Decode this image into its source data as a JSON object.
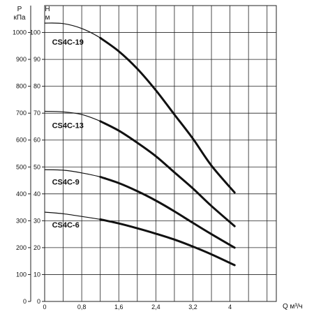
{
  "chart_data": {
    "type": "line",
    "title": "",
    "x_axis": {
      "label": "Q м³/ч",
      "range": [
        0,
        5
      ],
      "ticks": [
        "0",
        "0,8",
        "1,6",
        "2,4",
        "3,2",
        "4"
      ],
      "tick_values": [
        0,
        0.8,
        1.6,
        2.4,
        3.2,
        4.0
      ]
    },
    "y_axis_left": {
      "label_top": "P",
      "label_bottom": "кПа",
      "range": [
        0,
        1100
      ],
      "ticks": [
        "0",
        "100",
        "200",
        "300",
        "400",
        "500",
        "600",
        "700",
        "800",
        "900",
        "1000"
      ],
      "tick_values": [
        0,
        100,
        200,
        300,
        400,
        500,
        600,
        700,
        800,
        900,
        1000
      ]
    },
    "y_axis_right": {
      "label_top": "H",
      "label_bottom": "м",
      "range": [
        0,
        110
      ],
      "ticks": [
        "0",
        "10",
        "20",
        "30",
        "40",
        "50",
        "60",
        "70",
        "80",
        "90",
        "100"
      ],
      "tick_values": [
        0,
        10,
        20,
        30,
        40,
        50,
        60,
        70,
        80,
        90,
        100
      ]
    },
    "grid": true,
    "series": [
      {
        "name": "CS4C-19",
        "label_at": [
          0.25,
          965
        ],
        "points": [
          [
            0,
            1035
          ],
          [
            0.4,
            1033
          ],
          [
            0.8,
            1015
          ],
          [
            1.2,
            980
          ],
          [
            1.6,
            930
          ],
          [
            2.0,
            865
          ],
          [
            2.4,
            785
          ],
          [
            2.8,
            695
          ],
          [
            3.2,
            605
          ],
          [
            3.6,
            505
          ],
          [
            4.1,
            405
          ]
        ]
      },
      {
        "name": "CS4C-13",
        "label_at": [
          0.25,
          655
        ],
        "points": [
          [
            0,
            707
          ],
          [
            0.4,
            705
          ],
          [
            0.8,
            695
          ],
          [
            1.2,
            670
          ],
          [
            1.6,
            635
          ],
          [
            2.0,
            590
          ],
          [
            2.4,
            540
          ],
          [
            2.8,
            480
          ],
          [
            3.2,
            420
          ],
          [
            3.6,
            355
          ],
          [
            4.1,
            280
          ]
        ]
      },
      {
        "name": "CS4C-9",
        "label_at": [
          0.25,
          445
        ],
        "points": [
          [
            0,
            490
          ],
          [
            0.4,
            488
          ],
          [
            0.8,
            478
          ],
          [
            1.2,
            463
          ],
          [
            1.6,
            440
          ],
          [
            2.0,
            410
          ],
          [
            2.4,
            375
          ],
          [
            2.8,
            335
          ],
          [
            3.2,
            292
          ],
          [
            3.6,
            250
          ],
          [
            4.1,
            200
          ]
        ]
      },
      {
        "name": "CS4C-6",
        "label_at": [
          0.25,
          285
        ],
        "points": [
          [
            0,
            332
          ],
          [
            0.4,
            326
          ],
          [
            0.8,
            316
          ],
          [
            1.2,
            305
          ],
          [
            1.6,
            290
          ],
          [
            2.0,
            272
          ],
          [
            2.4,
            252
          ],
          [
            2.8,
            230
          ],
          [
            3.2,
            204
          ],
          [
            3.6,
            175
          ],
          [
            4.1,
            135
          ]
        ]
      }
    ]
  }
}
